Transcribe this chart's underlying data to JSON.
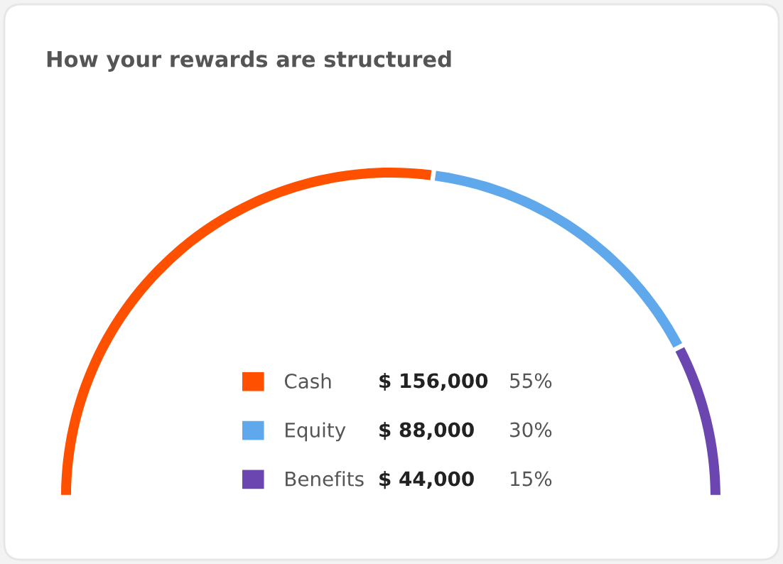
{
  "chart_data": {
    "type": "donut",
    "title": "How your rewards are structured",
    "categories": [
      "Cash",
      "Equity",
      "Benefits"
    ],
    "values": [
      156000,
      88000,
      44000
    ],
    "colors": [
      "#ff5000",
      "#5fa8ec",
      "#6b46b0"
    ],
    "value_labels": [
      "$ 156,000",
      "$ 88,000",
      "$ 44,000"
    ],
    "annotations": [
      "55%",
      "30%",
      "15%"
    ],
    "legend": "bottom"
  }
}
